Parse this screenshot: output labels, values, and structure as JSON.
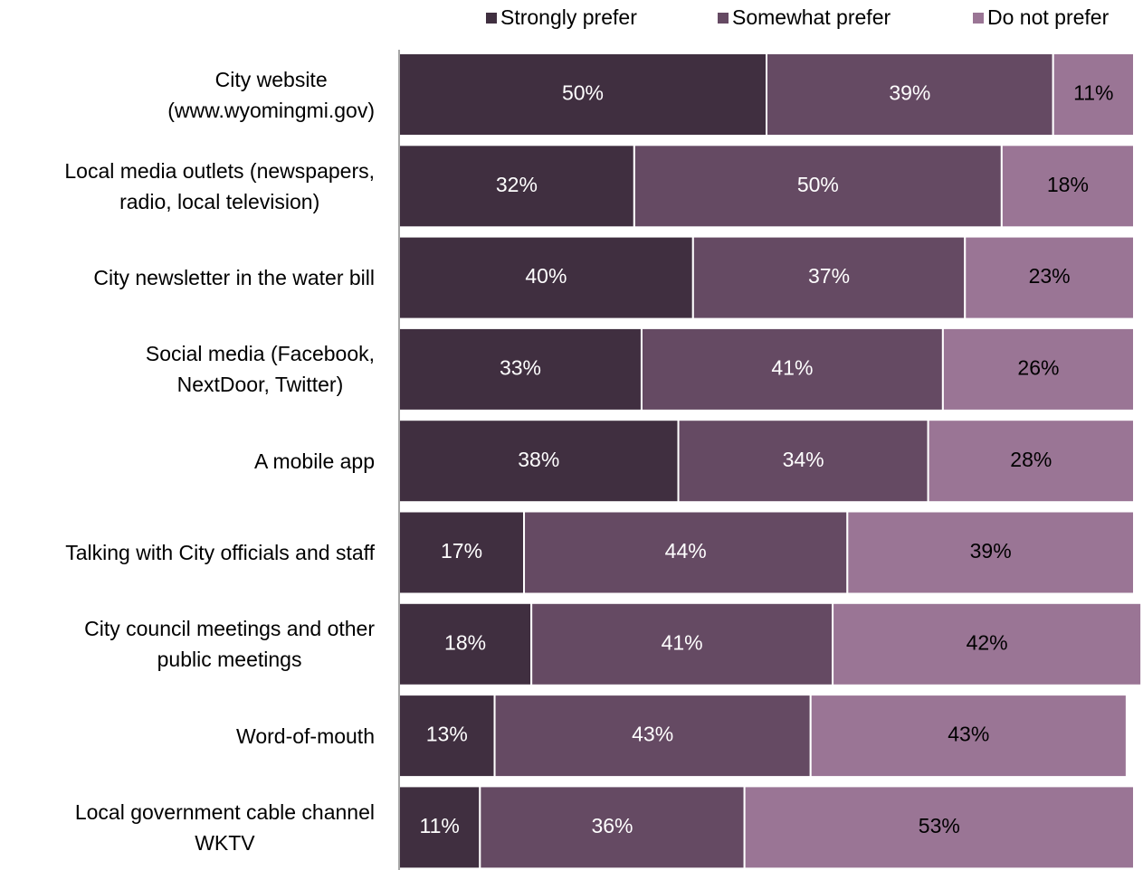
{
  "chart_data": {
    "type": "stacked-bar-horizontal",
    "categories": [
      "City website\n(www.wyomingmi.gov)",
      "Local media outlets (newspapers,\nradio, local television)",
      "City newsletter in the water bill",
      "Social media (Facebook,\nNextDoor, Twitter)",
      "A mobile app",
      "Talking with City officials and staff",
      "City council meetings and other\npublic meetings",
      "Word-of-mouth",
      "Local government cable channel\nWKTV"
    ],
    "series": [
      {
        "name": "Strongly prefer",
        "color": "#402f40",
        "values": [
          50,
          32,
          40,
          33,
          38,
          17,
          18,
          13,
          11
        ],
        "value_labels": [
          "50%",
          "32%",
          "40%",
          "33%",
          "38%",
          "17%",
          "18%",
          "13%",
          "11%"
        ]
      },
      {
        "name": "Somewhat prefer",
        "color": "#654a63",
        "values": [
          39,
          50,
          37,
          41,
          34,
          44,
          41,
          43,
          36
        ],
        "value_labels": [
          "39%",
          "50%",
          "37%",
          "41%",
          "34%",
          "44%",
          "41%",
          "43%",
          "36%"
        ]
      },
      {
        "name": "Do not prefer",
        "color": "#9a7595",
        "values": [
          11,
          18,
          23,
          26,
          28,
          39,
          42,
          43,
          53
        ],
        "value_labels": [
          "11%",
          "18%",
          "23%",
          "26%",
          "28%",
          "39%",
          "42%",
          "43%",
          "53%"
        ]
      }
    ],
    "xlim": [
      0,
      100
    ],
    "legend": "top-right"
  }
}
